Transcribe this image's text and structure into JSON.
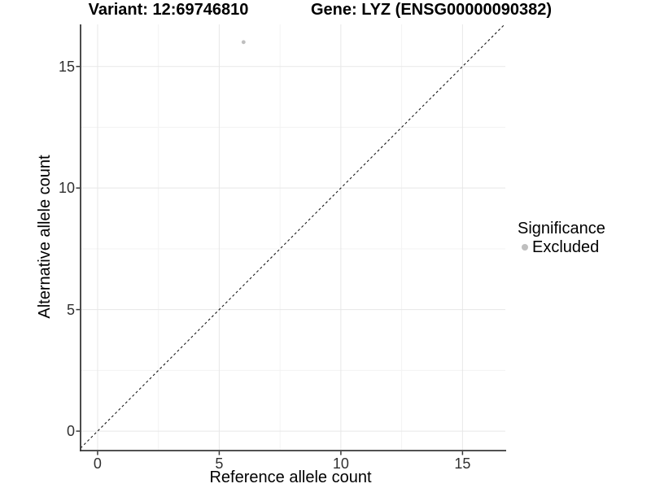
{
  "chart_data": {
    "type": "scatter",
    "title_left": "Variant: 12:69746810",
    "title_right": "Gene: LYZ (ENSG00000090382)",
    "xlabel": "Reference allele count",
    "ylabel": "Alternative allele count",
    "x_ticks": [
      0,
      5,
      10,
      15
    ],
    "y_ticks": [
      0,
      5,
      10,
      15
    ],
    "x_minor_ticks": [
      2.5,
      7.5,
      12.5
    ],
    "y_minor_ticks": [
      2.5,
      7.5,
      12.5
    ],
    "xlim": [
      -0.7,
      16.76
    ],
    "ylim": [
      -0.8,
      16.73
    ],
    "grid": true,
    "reference_line": {
      "type": "identity",
      "slope": 1,
      "intercept": 0,
      "style": "dashed"
    },
    "series": [
      {
        "name": "Excluded",
        "points": [
          {
            "x": 6,
            "y": 16
          }
        ]
      }
    ],
    "legend": {
      "title": "Significance",
      "position": "right",
      "entries": [
        {
          "label": "Excluded",
          "color": "#bfbfbf"
        }
      ]
    }
  },
  "colors": {
    "background": "#ffffff",
    "axis_line": "#383838",
    "tick_mark": "#383838",
    "tick_label": "#303030",
    "major_grid": "#e7e7e7",
    "minor_grid": "#f3f3f3",
    "point": "#bfbfbf",
    "identity_line": "#1a1a1a",
    "text": "#000000"
  }
}
